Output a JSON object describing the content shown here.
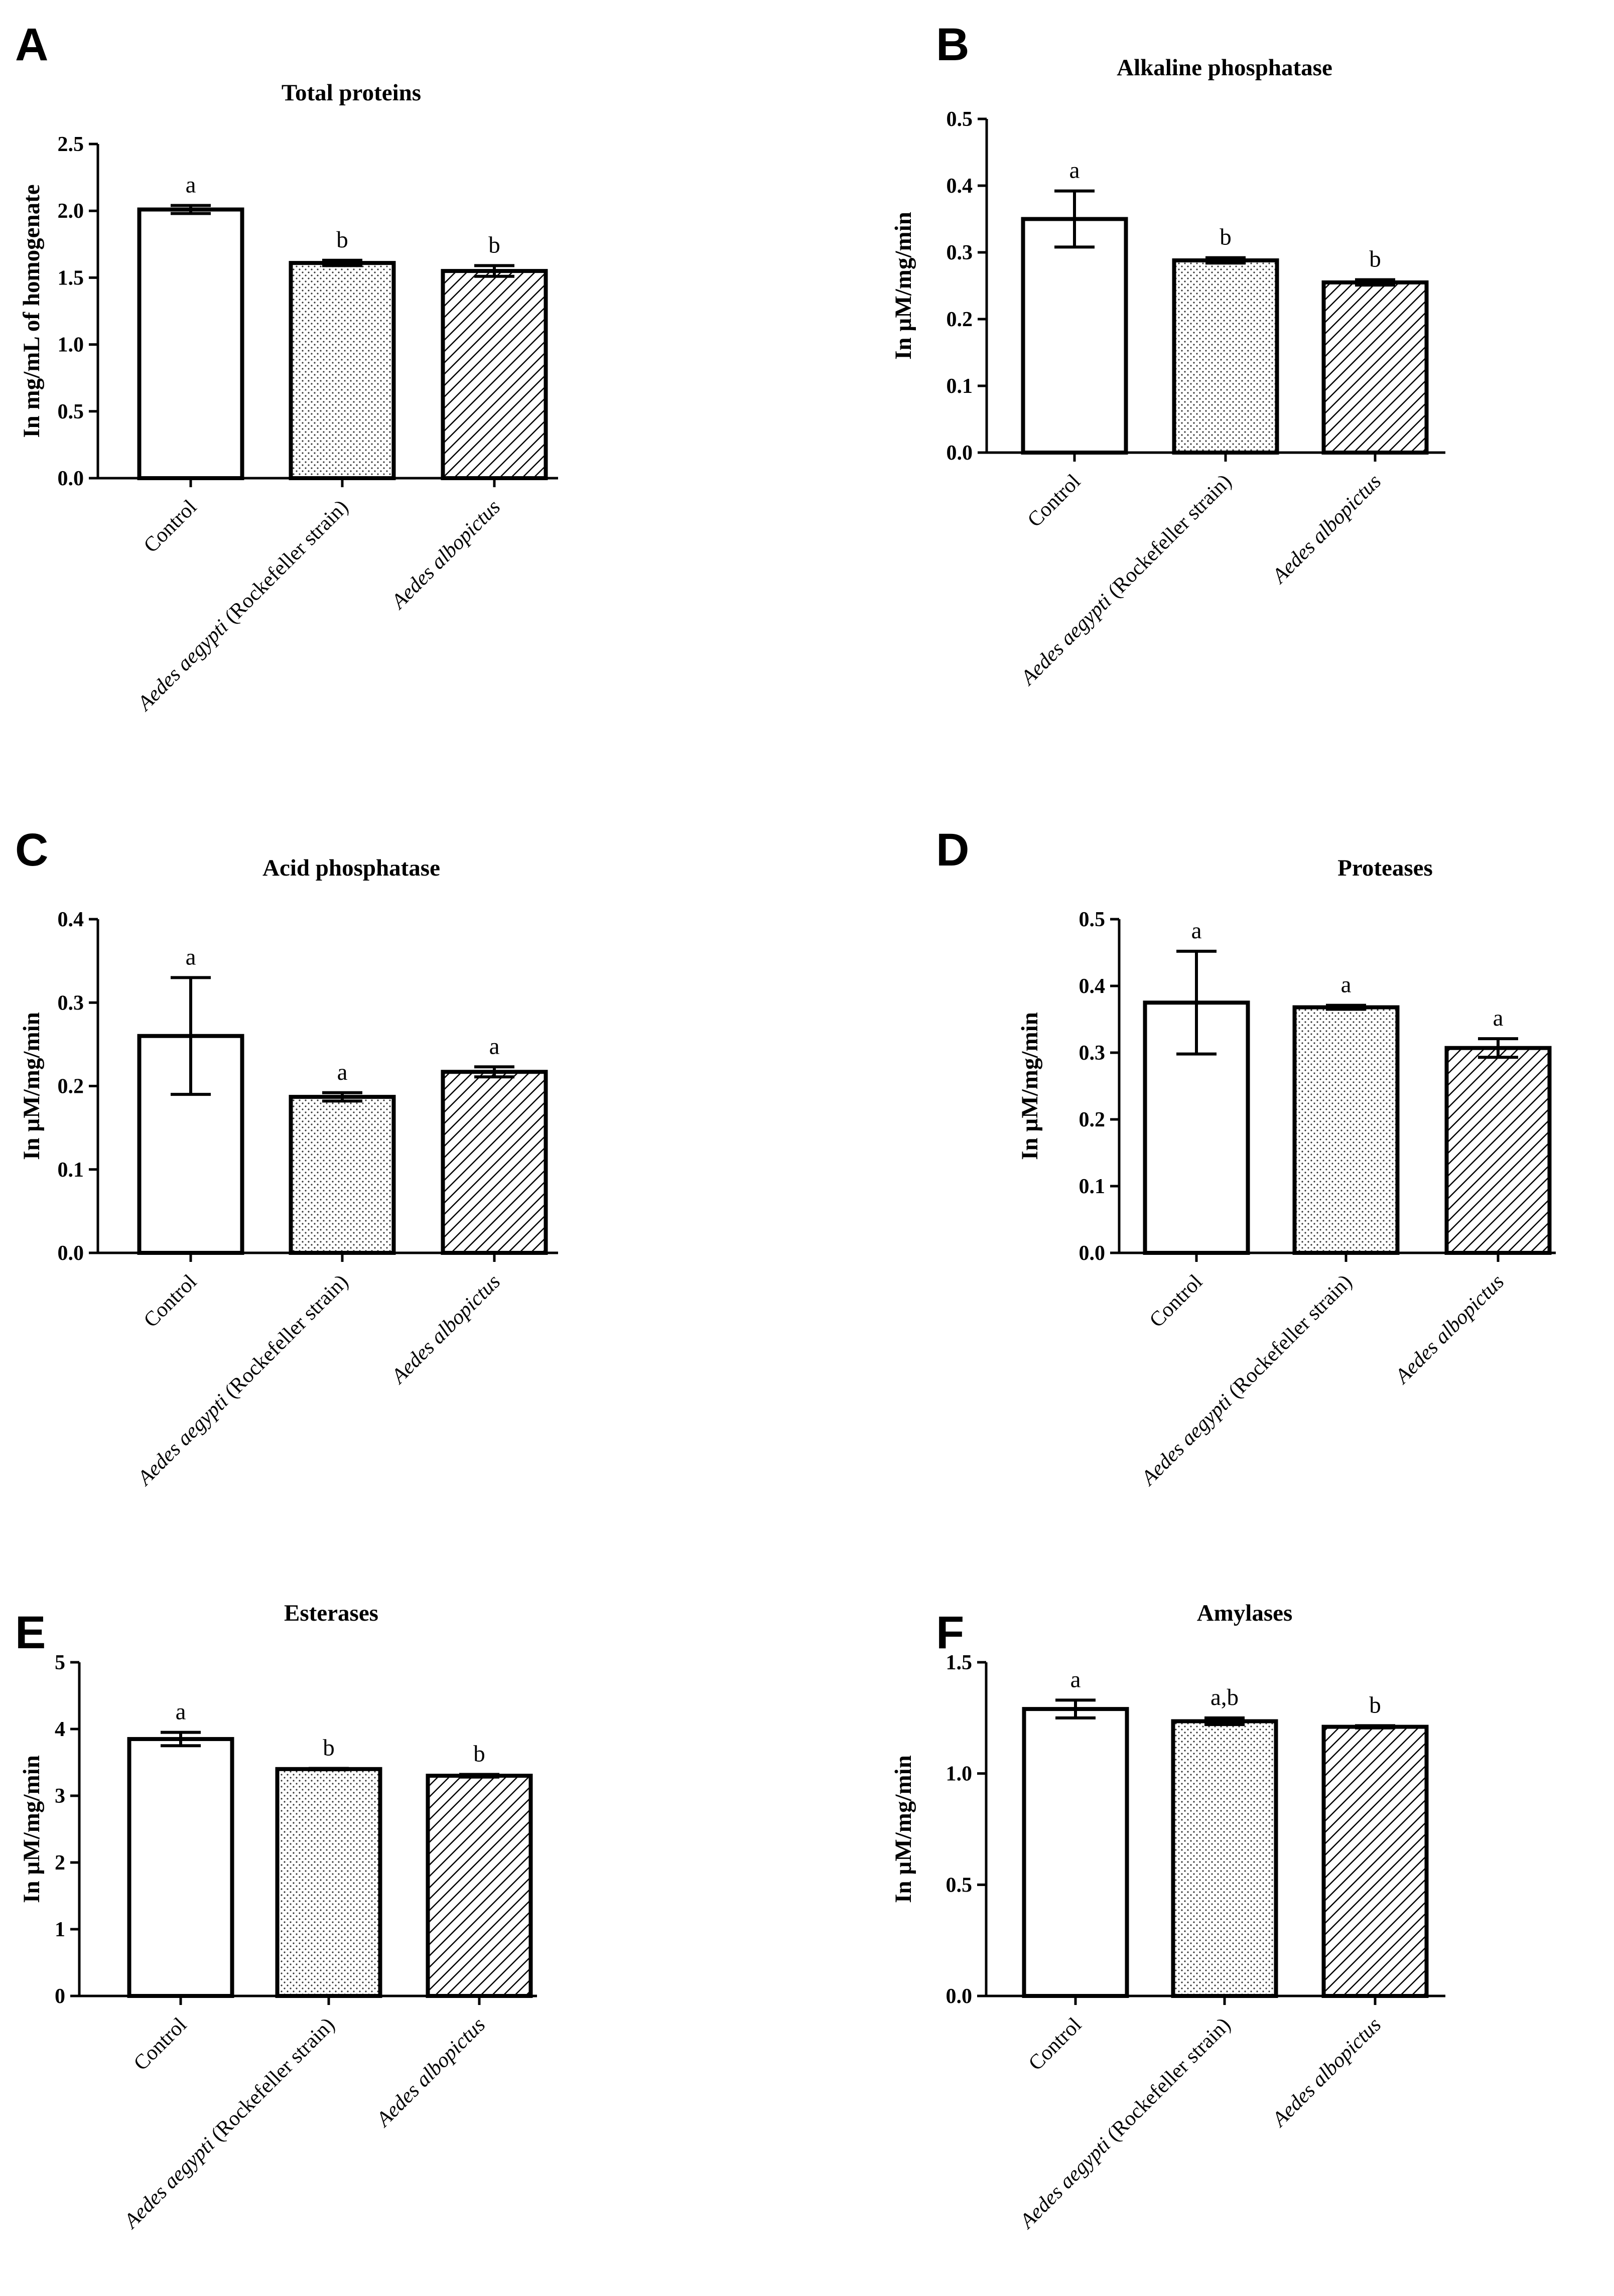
{
  "chart_data": [
    {
      "panel": "A",
      "type": "bar",
      "title": "Total proteins",
      "ylabel": "In mg/mL of homogenate",
      "ylim": [
        0,
        2.5
      ],
      "yticks": [
        "0.0",
        "0.5",
        "1.0",
        "1.5",
        "2.0",
        "2.5"
      ],
      "categories": [
        {
          "italic": "",
          "normal": "Control"
        },
        {
          "italic": "Aedes aegypti",
          "normal": " (Rockefeller strain)"
        },
        {
          "italic": "Aedes albopictus",
          "normal": ""
        }
      ],
      "values": [
        2.01,
        1.61,
        1.55
      ],
      "errors": [
        0.03,
        0.02,
        0.04
      ],
      "significance": [
        "a",
        "b",
        "b"
      ],
      "patterns": [
        "none",
        "dots",
        "hatch"
      ]
    },
    {
      "panel": "B",
      "type": "bar",
      "title": "Alkaline phosphatase",
      "ylabel": "In µM/mg/min",
      "ylim": [
        0,
        0.5
      ],
      "yticks": [
        "0.0",
        "0.1",
        "0.2",
        "0.3",
        "0.4",
        "0.5"
      ],
      "categories": [
        {
          "italic": "",
          "normal": "Control"
        },
        {
          "italic": "Aedes aegypti",
          "normal": " (Rockefeller strain)"
        },
        {
          "italic": "Aedes albopictus",
          "normal": ""
        }
      ],
      "values": [
        0.35,
        0.288,
        0.255
      ],
      "errors": [
        0.042,
        0.004,
        0.004
      ],
      "significance": [
        "a",
        "b",
        "b"
      ],
      "patterns": [
        "none",
        "dots",
        "hatch"
      ]
    },
    {
      "panel": "C",
      "type": "bar",
      "title": "Acid phosphatase",
      "ylabel": "In µM/mg/min",
      "ylim": [
        0,
        0.4
      ],
      "yticks": [
        "0.0",
        "0.1",
        "0.2",
        "0.3",
        "0.4"
      ],
      "categories": [
        {
          "italic": "",
          "normal": "Control"
        },
        {
          "italic": "Aedes aegypti",
          "normal": " (Rockefeller strain)"
        },
        {
          "italic": "Aedes albopictus",
          "normal": ""
        }
      ],
      "values": [
        0.26,
        0.187,
        0.217
      ],
      "errors": [
        0.07,
        0.005,
        0.006
      ],
      "significance": [
        "a",
        "a",
        "a"
      ],
      "patterns": [
        "none",
        "dots",
        "hatch"
      ]
    },
    {
      "panel": "D",
      "type": "bar",
      "title": "Proteases",
      "ylabel": "In µM/mg/min",
      "ylim": [
        0,
        0.5
      ],
      "yticks": [
        "0.0",
        "0.1",
        "0.2",
        "0.3",
        "0.4",
        "0.5"
      ],
      "categories": [
        {
          "italic": "",
          "normal": "Control"
        },
        {
          "italic": "Aedes aegypti",
          "normal": " (Rockefeller strain)"
        },
        {
          "italic": "Aedes albopictus",
          "normal": ""
        }
      ],
      "values": [
        0.375,
        0.368,
        0.307
      ],
      "errors": [
        0.077,
        0.003,
        0.014
      ],
      "significance": [
        "a",
        "a",
        "a"
      ],
      "patterns": [
        "none",
        "dots",
        "hatch"
      ]
    },
    {
      "panel": "E",
      "type": "bar",
      "title": "Esterases",
      "ylabel": "In µM/mg/min",
      "ylim": [
        0,
        5
      ],
      "yticks": [
        "0",
        "1",
        "2",
        "3",
        "4",
        "5"
      ],
      "categories": [
        {
          "italic": "",
          "normal": "Control"
        },
        {
          "italic": "Aedes aegypti",
          "normal": " (Rockefeller strain)"
        },
        {
          "italic": "Aedes albopictus",
          "normal": ""
        }
      ],
      "values": [
        3.85,
        3.4,
        3.3
      ],
      "errors": [
        0.1,
        0.01,
        0.02
      ],
      "significance": [
        "a",
        "b",
        "b"
      ],
      "patterns": [
        "none",
        "dots",
        "hatch"
      ]
    },
    {
      "panel": "F",
      "type": "bar",
      "title": "Amylases",
      "ylabel": "In µM/mg/min",
      "ylim": [
        0,
        1.5
      ],
      "yticks": [
        "0.0",
        "0.5",
        "1.0",
        "1.5"
      ],
      "categories": [
        {
          "italic": "",
          "normal": "Control"
        },
        {
          "italic": "Aedes aegypti",
          "normal": " (Rockefeller strain)"
        },
        {
          "italic": "Aedes albopictus",
          "normal": ""
        }
      ],
      "values": [
        1.29,
        1.235,
        1.21
      ],
      "errors": [
        0.04,
        0.015,
        0.005
      ],
      "significance": [
        "a",
        "a,b",
        "b"
      ],
      "patterns": [
        "none",
        "dots",
        "hatch"
      ]
    }
  ]
}
